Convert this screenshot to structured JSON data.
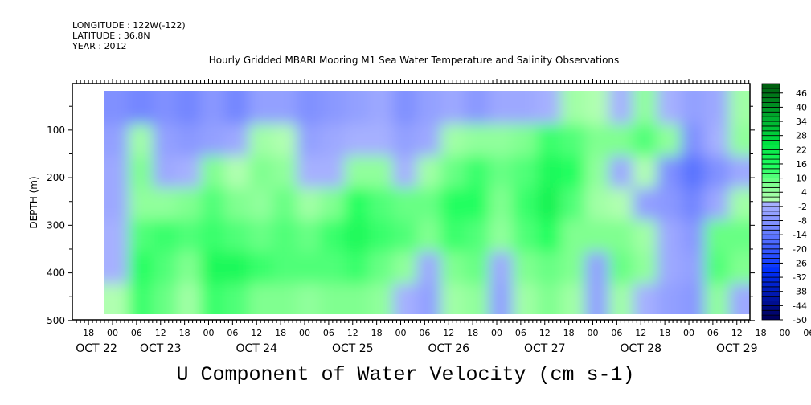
{
  "header": {
    "longitude": "LONGITUDE : 122W(-122)",
    "latitude": "LATITUDE : 36.8N",
    "year": "YEAR : 2012"
  },
  "chart_data": {
    "type": "heatmap",
    "title": "Hourly Gridded MBARI Mooring M1 Sea Water Temperature and Salinity Observations",
    "xlabel": "U Component of Water Velocity (cm s-1)",
    "ylabel": "DEPTH (m)",
    "ylim": [
      500,
      0
    ],
    "yticks": [
      100,
      200,
      300,
      400,
      500
    ],
    "xtick_labels": [
      "18",
      "00",
      "06",
      "12",
      "18",
      "00",
      "06",
      "12",
      "18",
      "00",
      "06",
      "12",
      "18",
      "00",
      "06",
      "12",
      "18",
      "00",
      "06",
      "12",
      "18",
      "00",
      "06",
      "12",
      "18",
      "00",
      "06",
      "12",
      "18",
      "00",
      "06",
      "12"
    ],
    "date_labels": [
      "OCT 22",
      "OCT 23",
      "OCT 24",
      "OCT 25",
      "OCT 26",
      "OCT 27",
      "OCT 28",
      "OCT 29"
    ],
    "colorbar": {
      "min": -50,
      "max": 48,
      "step": 2,
      "labels": [
        "46",
        "40",
        "34",
        "28",
        "22",
        "16",
        "10",
        "4",
        "-2",
        "-8",
        "-14",
        "-20",
        "-26",
        "-32",
        "-38",
        "-44",
        "-50"
      ]
    },
    "time_start_hours_from_oct22": 22,
    "time_step_hours": 6,
    "depths": [
      54,
      121,
      188,
      255,
      322,
      389,
      456
    ],
    "values_by_time": [
      [
        -10,
        -6,
        -4,
        -4,
        -2,
        -2,
        0
      ],
      [
        -12,
        2,
        6,
        4,
        10,
        14,
        12
      ],
      [
        -10,
        -6,
        -4,
        4,
        12,
        10,
        8
      ],
      [
        -12,
        -8,
        -2,
        6,
        10,
        6,
        2
      ],
      [
        -8,
        -6,
        6,
        10,
        12,
        16,
        12
      ],
      [
        -12,
        -4,
        0,
        6,
        10,
        16,
        10
      ],
      [
        -6,
        2,
        6,
        4,
        8,
        12,
        6
      ],
      [
        -6,
        0,
        4,
        8,
        10,
        10,
        6
      ],
      [
        -10,
        -6,
        -2,
        2,
        8,
        10,
        4
      ],
      [
        -8,
        -4,
        -2,
        6,
        12,
        10,
        6
      ],
      [
        -6,
        -2,
        4,
        14,
        16,
        12,
        6
      ],
      [
        -4,
        -2,
        4,
        10,
        12,
        8,
        4
      ],
      [
        -10,
        -6,
        -2,
        8,
        10,
        4,
        -2
      ],
      [
        -6,
        -4,
        2,
        8,
        6,
        -4,
        -6
      ],
      [
        -4,
        2,
        8,
        14,
        12,
        6,
        2
      ],
      [
        -8,
        4,
        12,
        14,
        10,
        8,
        4
      ],
      [
        -4,
        4,
        8,
        6,
        4,
        -4,
        -6
      ],
      [
        -4,
        6,
        10,
        12,
        10,
        6,
        2
      ],
      [
        -2,
        12,
        16,
        18,
        14,
        8,
        6
      ],
      [
        2,
        10,
        14,
        10,
        6,
        6,
        2
      ],
      [
        0,
        6,
        4,
        2,
        6,
        -6,
        -6
      ],
      [
        -2,
        6,
        -4,
        0,
        6,
        8,
        2
      ],
      [
        4,
        10,
        0,
        -6,
        2,
        4,
        -2
      ],
      [
        -2,
        4,
        -10,
        -8,
        -4,
        -4,
        -6
      ],
      [
        -6,
        -10,
        -16,
        -12,
        -8,
        -6,
        -8
      ],
      [
        -4,
        -2,
        -10,
        -4,
        8,
        10,
        4
      ],
      [
        2,
        4,
        -4,
        2,
        8,
        6,
        -4
      ]
    ]
  }
}
